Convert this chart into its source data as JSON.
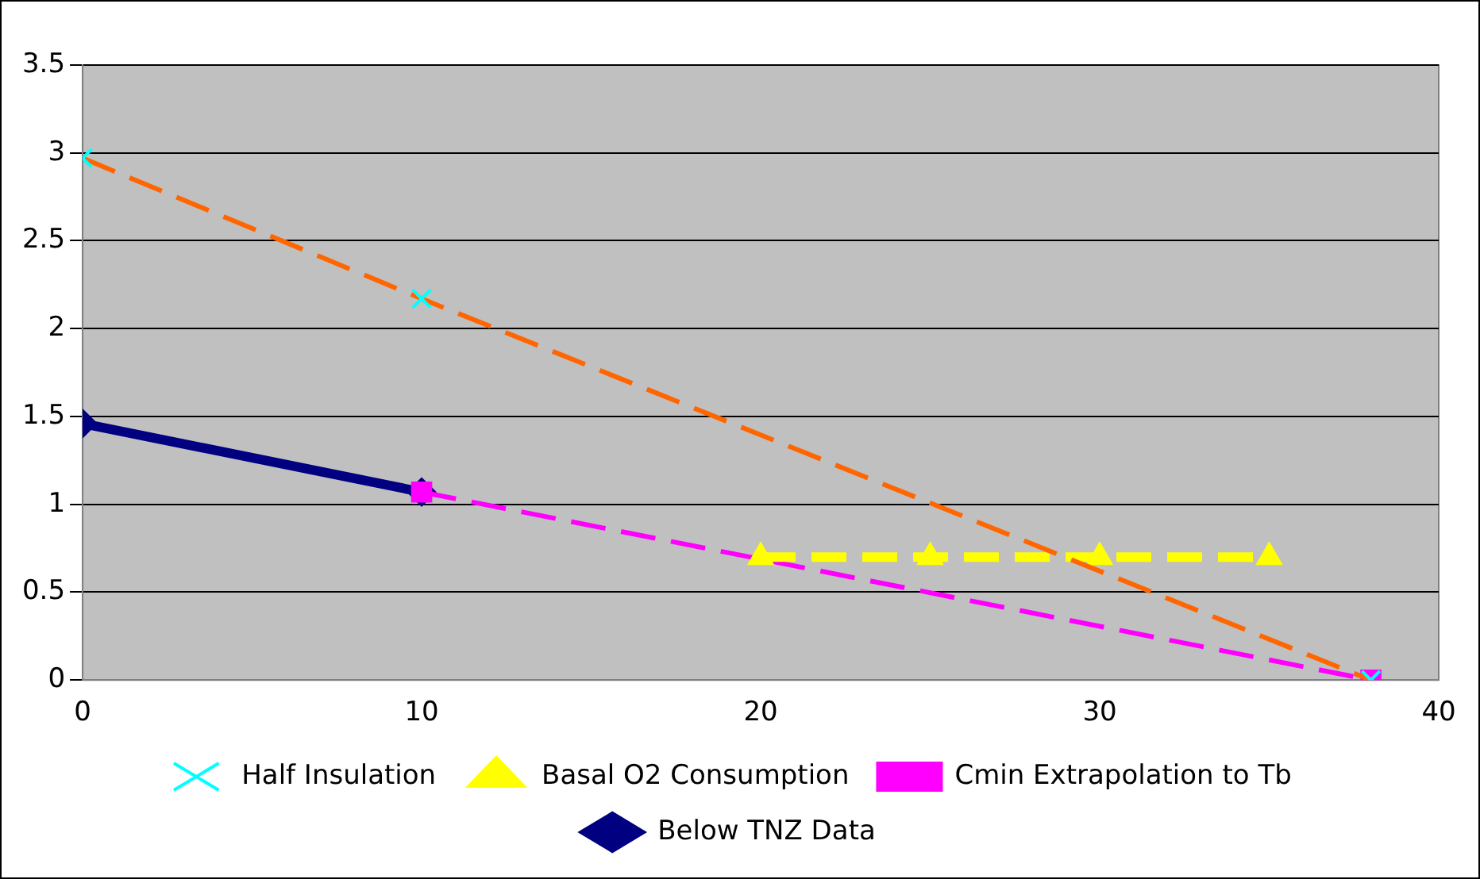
{
  "chart_data": {
    "type": "line",
    "xlim": [
      0,
      40
    ],
    "xticks": [
      0,
      10,
      20,
      30,
      40
    ],
    "ylim": [
      0,
      3.5
    ],
    "yticks": [
      0,
      0.5,
      1,
      1.5,
      2,
      2.5,
      3,
      3.5
    ],
    "grid": "y",
    "legend": "bottom",
    "series": [
      {
        "name": "Below TNZ Data",
        "color": "#000080",
        "x": [
          0,
          10
        ],
        "values": [
          1.46,
          1.07
        ],
        "marker": "diamond",
        "line_style": "solid"
      },
      {
        "name": "Cmin Extrapolation to Tb",
        "color": "#ff00ff",
        "x": [
          10,
          38
        ],
        "values": [
          1.07,
          0
        ],
        "marker": "square",
        "line_style": "dashed"
      },
      {
        "name": "Basal O2 Consumption",
        "color": "#ffff00",
        "x": [
          20,
          25,
          30,
          35
        ],
        "values": [
          0.7,
          0.7,
          0.7,
          0.7
        ],
        "marker": "triangle",
        "line_style": "dashed"
      },
      {
        "name": "Half Insulation",
        "color": "#ff6600",
        "colors": [
          "#00ffff",
          "#00ffff",
          "#00ffff"
        ],
        "x": [
          0,
          10,
          38
        ],
        "values": [
          2.97,
          2.17,
          0
        ],
        "marker": "cross",
        "line_style": "dashed"
      }
    ]
  }
}
